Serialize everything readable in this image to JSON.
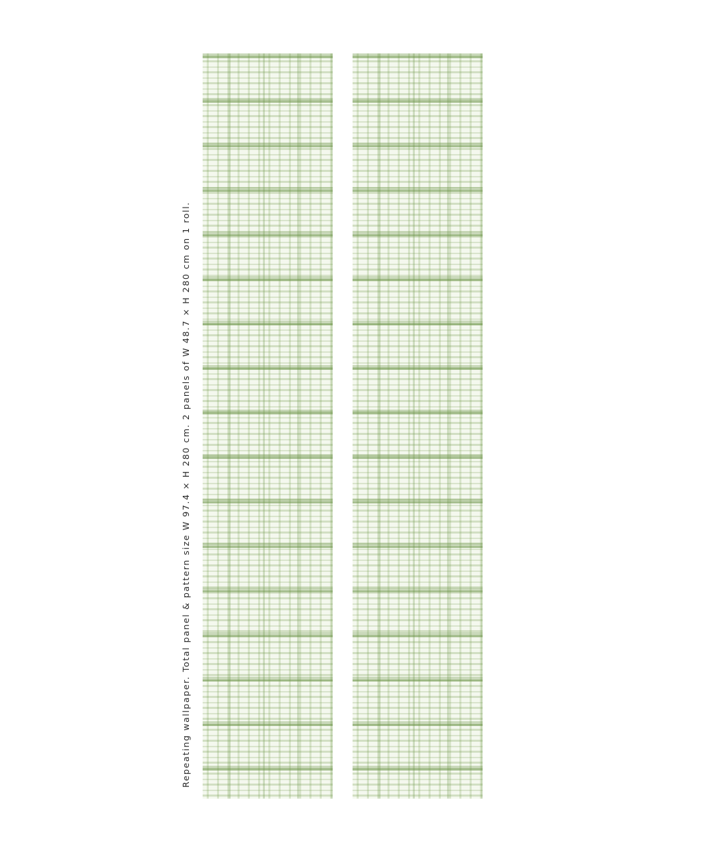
{
  "caption": "Repeating wallpaper. Total panel & pattern size W 97.4 × H 280 cm. 2 panels of W 48.7 × H 280 cm on 1 roll.",
  "pattern": {
    "name": "green gingham watercolor check",
    "colors": {
      "background": "#f4f8ee",
      "stripe": "#78a054",
      "stripe_dark": "#68913f"
    }
  },
  "panels": [
    {
      "id": "left-panel"
    },
    {
      "id": "right-panel"
    }
  ]
}
